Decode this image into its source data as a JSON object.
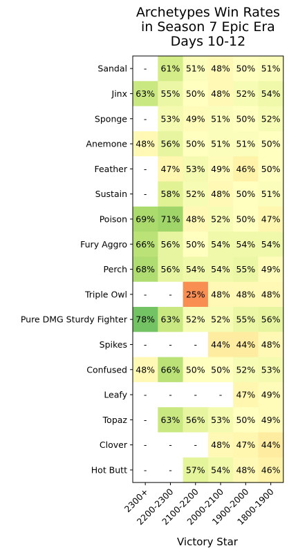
{
  "chart_data": {
    "type": "heatmap",
    "title_lines": [
      "Archetypes Win Rates",
      "in Season 7 Epic Era",
      "Days 10-12"
    ],
    "xlabel": "Victory Star",
    "ylabel": "",
    "columns": [
      "2300+",
      "2200-2300",
      "2100-2200",
      "2000-2100",
      "1900-2000",
      "1800-1900"
    ],
    "rows": [
      "Sandal",
      "Jinx",
      "Sponge",
      "Anemone",
      "Feather",
      "Sustain",
      "Poison",
      "Fury Aggro",
      "Perch",
      "Triple Owl",
      "Pure DMG Sturdy Fighter",
      "Spikes",
      "Confused",
      "Leafy",
      "Topaz",
      "Clover",
      "Hot Butt"
    ],
    "values": [
      [
        null,
        61,
        51,
        48,
        50,
        51
      ],
      [
        63,
        55,
        50,
        48,
        52,
        54
      ],
      [
        null,
        53,
        49,
        51,
        50,
        52
      ],
      [
        48,
        56,
        50,
        51,
        51,
        50
      ],
      [
        null,
        47,
        53,
        49,
        46,
        50
      ],
      [
        null,
        58,
        52,
        48,
        50,
        51
      ],
      [
        69,
        71,
        48,
        52,
        50,
        47
      ],
      [
        66,
        56,
        50,
        54,
        54,
        54
      ],
      [
        68,
        56,
        54,
        54,
        55,
        49
      ],
      [
        null,
        null,
        25,
        48,
        48,
        48
      ],
      [
        78,
        63,
        52,
        52,
        55,
        56
      ],
      [
        null,
        null,
        null,
        44,
        44,
        48
      ],
      [
        48,
        66,
        50,
        50,
        52,
        53
      ],
      [
        null,
        null,
        null,
        null,
        47,
        49
      ],
      [
        null,
        63,
        56,
        53,
        50,
        49
      ],
      [
        null,
        null,
        null,
        48,
        47,
        44
      ],
      [
        null,
        null,
        57,
        54,
        48,
        46
      ]
    ],
    "missing_label": "-",
    "value_suffix": "%",
    "colormap": "RdYlGn",
    "color_range": [
      0,
      100
    ],
    "colors": {
      "missing": "#ffffff",
      "text": "#000000"
    }
  }
}
